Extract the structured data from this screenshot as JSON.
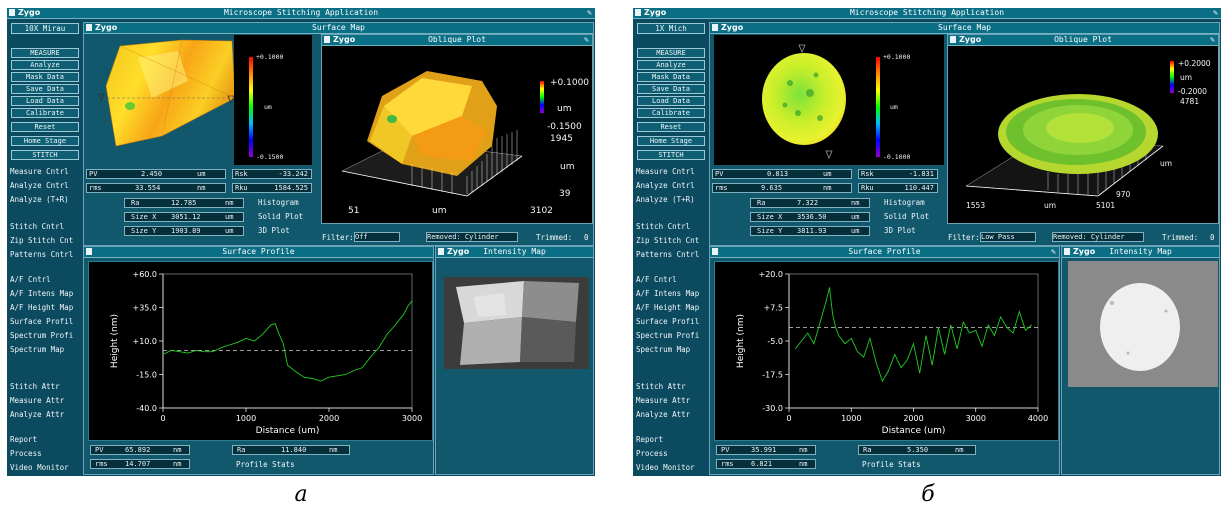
{
  "panels": {
    "a": {
      "app_title": "Microscope Stitching Application",
      "logo": "Zygo",
      "objective": "10X  Mirau",
      "menu": [
        "MEASURE",
        "Analyze",
        "Mask Data",
        "Save Data",
        "Load Data",
        "Calibrate",
        "Reset",
        "Home Stage",
        "STITCH"
      ],
      "side_group1": [
        "Measure Cntrl",
        "Analyze Cntrl",
        "Analyze (T+R)"
      ],
      "side_group2": [
        "Stitch Cntrl",
        "Zip Stitch Cnt",
        "Patterns Cntrl"
      ],
      "side_group3": [
        "A/F Cntrl",
        "A/F Intens Map",
        "A/F Height Map",
        "Surface Profil",
        "Spectrum Profi",
        "Spectrum Map"
      ],
      "side_group4": [
        "Stitch Attr",
        "Measure Attr",
        "Analyze Attr"
      ],
      "side_group5": [
        "Report",
        "Process",
        "Video Monitor"
      ],
      "surface_map_title": "Surface Map",
      "surface_map_scale": {
        "max": "+0.1000",
        "unit": "um",
        "min": "-0.1500"
      },
      "oblique_title": "Oblique Plot",
      "oblique_scale": {
        "max": "+0.1000",
        "unit": "um",
        "min": "-0.1500"
      },
      "oblique_axes": {
        "y_max": "1945",
        "y_unit": "um",
        "y_min": "39",
        "x_min": "51",
        "x_unit": "um",
        "x_max": "3102"
      },
      "stats": {
        "pv": {
          "label": "PV",
          "value": "2.450",
          "unit": "um"
        },
        "rms": {
          "label": "rms",
          "value": "33.554",
          "unit": "nm"
        },
        "rsk": {
          "label": "Rsk",
          "value": "-33.242"
        },
        "rku": {
          "label": "Rku",
          "value": "1584.525"
        },
        "ra": {
          "label": "Ra",
          "value": "12.785",
          "unit": "nm"
        },
        "size_x": {
          "label": "Size X",
          "value": "3051.12",
          "unit": "um"
        },
        "size_y": {
          "label": "Size Y",
          "value": "1903.89",
          "unit": "um"
        }
      },
      "plot_buttons": [
        "Histogram",
        "Solid Plot",
        "3D Plot"
      ],
      "filter_label": "Filter:",
      "filter_value": "Off",
      "removed_label": "Removed: Cylinder",
      "trimmed_label": "Trimmed:",
      "trimmed_value": "0",
      "profile_title": "Surface Profile",
      "intensity_title": "Intensity Map",
      "profile_stats": {
        "pv": {
          "label": "PV",
          "value": "65.892",
          "unit": "nm"
        },
        "rms": {
          "label": "rms",
          "value": "14.707",
          "unit": "nm"
        },
        "ra": {
          "label": "Ra",
          "value": "11.840",
          "unit": "nm"
        },
        "title": "Profile Stats"
      }
    },
    "b": {
      "app_title": "Microscope Stitching Application",
      "logo": "Zygo",
      "objective": "1X  Mich",
      "menu": [
        "MEASURE",
        "Analyze",
        "Mask Data",
        "Save Data",
        "Load Data",
        "Calibrate",
        "Reset",
        "Home Stage",
        "STITCH"
      ],
      "side_group1": [
        "Measure Cntrl",
        "Analyze Cntrl",
        "Analyze (T+R)"
      ],
      "side_group2": [
        "Stitch Cntrl",
        "Zip Stitch Cnt",
        "Patterns Cntrl"
      ],
      "side_group3": [
        "A/F Cntrl",
        "A/F Intens Map",
        "A/F Height Map",
        "Surface Profil",
        "Spectrum Profi",
        "Spectrum Map"
      ],
      "side_group4": [
        "Stitch Attr",
        "Measure Attr",
        "Analyze Attr"
      ],
      "side_group5": [
        "Report",
        "Process",
        "Video Monitor"
      ],
      "surface_map_title": "Surface Map",
      "surface_map_scale": {
        "max": "+0.1000",
        "unit": "um",
        "min": "-0.1000"
      },
      "oblique_title": "Oblique Plot",
      "oblique_scale": {
        "max": "+0.2000",
        "unit": "um",
        "min": "-0.2000"
      },
      "oblique_axes": {
        "y_max": "4781",
        "y_unit": "um",
        "y_min": "970",
        "x_min": "1553",
        "x_unit": "um",
        "x_max": "5101"
      },
      "stats": {
        "pv": {
          "label": "PV",
          "value": "0.813",
          "unit": "um"
        },
        "rms": {
          "label": "rms",
          "value": "9.635",
          "unit": "nm"
        },
        "rsk": {
          "label": "Rsk",
          "value": "-1.831"
        },
        "rku": {
          "label": "Rku",
          "value": "110.447"
        },
        "ra": {
          "label": "Ra",
          "value": "7.322",
          "unit": "nm"
        },
        "size_x": {
          "label": "Size X",
          "value": "3536.50",
          "unit": "um"
        },
        "size_y": {
          "label": "Size Y",
          "value": "3811.93",
          "unit": "um"
        }
      },
      "plot_buttons": [
        "Histogram",
        "Solid Plot",
        "3D Plot"
      ],
      "filter_label": "Filter:",
      "filter_value": "Low Pass",
      "removed_label": "Removed: Cylinder",
      "trimmed_label": "Trimmed:",
      "trimmed_value": "0",
      "profile_title": "Surface Profile",
      "intensity_title": "Intensity Map",
      "profile_stats": {
        "pv": {
          "label": "PV",
          "value": "35.991",
          "unit": "nm"
        },
        "rms": {
          "label": "rms",
          "value": "6.821",
          "unit": "nm"
        },
        "ra": {
          "label": "Ra",
          "value": "5.350",
          "unit": "nm"
        },
        "title": "Profile Stats"
      }
    }
  },
  "captions": {
    "a": "а",
    "b": "б"
  },
  "chart_data": [
    {
      "type": "line",
      "title": "Surface Profile",
      "xlabel": "Distance (um)",
      "ylabel": "Height (nm)",
      "xlim": [
        0,
        3000
      ],
      "ylim": [
        -40,
        60
      ],
      "x_ticks": [
        0,
        1000,
        2000,
        3000
      ],
      "y_ticks": [
        "+60.0",
        "+35.0",
        "+10.0",
        "-15.0",
        "-40.0"
      ],
      "reference_level": 3,
      "series": [
        {
          "color": "#22cc22",
          "x": [
            0,
            100,
            200,
            300,
            400,
            500,
            600,
            700,
            800,
            900,
            1000,
            1100,
            1200,
            1300,
            1350,
            1400,
            1450,
            1500,
            1600,
            1700,
            1800,
            1900,
            2000,
            2100,
            2200,
            2300,
            2400,
            2500,
            2600,
            2700,
            2800,
            2900,
            2950,
            3000
          ],
          "values": [
            0,
            3,
            2,
            1,
            3,
            2,
            2,
            5,
            7,
            9,
            12,
            10,
            15,
            22,
            23,
            15,
            8,
            -8,
            -13,
            -17,
            -18,
            -20,
            -17,
            -16,
            -15,
            -12,
            -10,
            -2,
            5,
            15,
            22,
            30,
            36,
            40
          ]
        }
      ]
    },
    {
      "type": "line",
      "title": "Surface Profile",
      "xlabel": "Distance (um)",
      "ylabel": "Height (nm)",
      "xlim": [
        0,
        4000
      ],
      "ylim": [
        -30,
        20
      ],
      "x_ticks": [
        0,
        1000,
        2000,
        3000,
        4000
      ],
      "y_ticks": [
        "+20.0",
        "+7.5",
        "-5.0",
        "-17.5",
        "-30.0"
      ],
      "reference_level": 0,
      "series": [
        {
          "color": "#22cc22",
          "x": [
            100,
            200,
            300,
            400,
            500,
            600,
            650,
            700,
            750,
            800,
            900,
            1000,
            1100,
            1200,
            1300,
            1400,
            1500,
            1600,
            1700,
            1800,
            1900,
            2000,
            2100,
            2200,
            2300,
            2400,
            2500,
            2600,
            2700,
            2800,
            2900,
            3000,
            3100,
            3200,
            3300,
            3400,
            3500,
            3600,
            3700,
            3800,
            3900
          ],
          "values": [
            -8,
            -5,
            -2,
            -6,
            2,
            10,
            15,
            5,
            0,
            -3,
            -6,
            -4,
            -9,
            -11,
            -4,
            -13,
            -20,
            -16,
            -10,
            -15,
            -12,
            -6,
            -17,
            -3,
            -14,
            0,
            -10,
            1,
            -8,
            2,
            -2,
            -1,
            -7,
            1,
            -3,
            4,
            0,
            -2,
            6,
            -1,
            1
          ]
        }
      ]
    }
  ]
}
